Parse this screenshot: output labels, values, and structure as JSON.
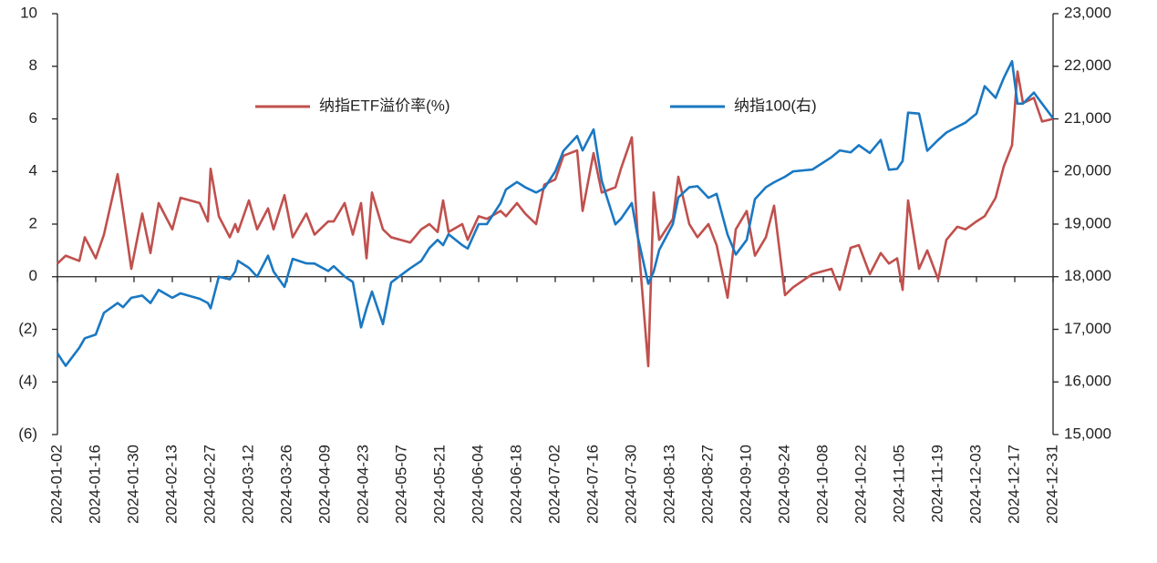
{
  "chart_data": {
    "type": "line",
    "x": [
      "2024-01-02",
      "2024-01-05",
      "2024-01-10",
      "2024-01-12",
      "2024-01-16",
      "2024-01-19",
      "2024-01-24",
      "2024-01-26",
      "2024-01-29",
      "2024-02-02",
      "2024-02-05",
      "2024-02-08",
      "2024-02-13",
      "2024-02-16",
      "2024-02-23",
      "2024-02-26",
      "2024-02-27",
      "2024-03-01",
      "2024-03-05",
      "2024-03-07",
      "2024-03-08",
      "2024-03-12",
      "2024-03-15",
      "2024-03-19",
      "2024-03-21",
      "2024-03-25",
      "2024-03-28",
      "2024-04-02",
      "2024-04-05",
      "2024-04-10",
      "2024-04-12",
      "2024-04-16",
      "2024-04-19",
      "2024-04-22",
      "2024-04-24",
      "2024-04-26",
      "2024-04-30",
      "2024-05-03",
      "2024-05-10",
      "2024-05-14",
      "2024-05-17",
      "2024-05-20",
      "2024-05-22",
      "2024-05-24",
      "2024-05-29",
      "2024-05-31",
      "2024-06-04",
      "2024-06-07",
      "2024-06-12",
      "2024-06-14",
      "2024-06-18",
      "2024-06-21",
      "2024-06-25",
      "2024-06-28",
      "2024-07-02",
      "2024-07-05",
      "2024-07-10",
      "2024-07-12",
      "2024-07-16",
      "2024-07-19",
      "2024-07-24",
      "2024-07-26",
      "2024-07-30",
      "2024-08-01",
      "2024-08-05",
      "2024-08-07",
      "2024-08-09",
      "2024-08-14",
      "2024-08-16",
      "2024-08-20",
      "2024-08-23",
      "2024-08-27",
      "2024-08-30",
      "2024-09-03",
      "2024-09-06",
      "2024-09-10",
      "2024-09-13",
      "2024-09-17",
      "2024-09-20",
      "2024-09-24",
      "2024-09-27",
      "2024-10-04",
      "2024-10-11",
      "2024-10-14",
      "2024-10-18",
      "2024-10-21",
      "2024-10-25",
      "2024-10-29",
      "2024-11-01",
      "2024-11-04",
      "2024-11-06",
      "2024-11-08",
      "2024-11-12",
      "2024-11-15",
      "2024-11-19",
      "2024-11-22",
      "2024-11-26",
      "2024-11-29",
      "2024-12-03",
      "2024-12-06",
      "2024-12-10",
      "2024-12-13",
      "2024-12-16",
      "2024-12-18",
      "2024-12-20",
      "2024-12-24",
      "2024-12-27",
      "2024-12-31"
    ],
    "series": [
      {
        "name": "纳指ETF溢价率(%)",
        "color": "#c0504d",
        "axis": "y",
        "values": [
          0.5,
          0.8,
          0.6,
          1.5,
          0.7,
          1.6,
          3.9,
          2.5,
          0.3,
          2.4,
          0.9,
          2.8,
          1.8,
          3.0,
          2.8,
          2.1,
          4.1,
          2.3,
          1.5,
          2.0,
          1.7,
          2.9,
          1.8,
          2.6,
          1.8,
          3.1,
          1.5,
          2.4,
          1.6,
          2.1,
          2.1,
          2.8,
          1.6,
          2.8,
          0.7,
          3.2,
          1.8,
          1.5,
          1.3,
          1.8,
          2.0,
          1.7,
          2.9,
          1.7,
          2.0,
          1.4,
          2.3,
          2.2,
          2.5,
          2.3,
          2.8,
          2.4,
          2.0,
          3.5,
          3.7,
          4.6,
          4.8,
          2.5,
          4.7,
          3.2,
          3.4,
          4.1,
          5.3,
          1.8,
          -3.4,
          3.2,
          1.4,
          2.2,
          3.8,
          2.0,
          1.5,
          2.0,
          1.2,
          -0.8,
          1.8,
          2.5,
          0.8,
          1.5,
          2.7,
          -0.7,
          -0.4,
          0.1,
          0.3,
          -0.5,
          1.1,
          1.2,
          0.1,
          0.9,
          0.5,
          0.7,
          -0.5,
          2.9,
          0.3,
          1.0,
          -0.1,
          1.4,
          1.9,
          1.8,
          2.1,
          2.3,
          3.0,
          4.2,
          5.0,
          7.8,
          6.6,
          6.8,
          5.9,
          6.0
        ]
      },
      {
        "name": "纳指100(右)",
        "color": "#1a78c2",
        "axis": "y2",
        "values": [
          16544,
          16306,
          16650,
          16830,
          16900,
          17314,
          17500,
          17421,
          17600,
          17642,
          17500,
          17750,
          17600,
          17685,
          17580,
          17500,
          17400,
          18000,
          17950,
          18100,
          18302,
          18169,
          18000,
          18400,
          18100,
          17808,
          18339,
          18254,
          18250,
          18108,
          18200,
          18003,
          17900,
          17037,
          17400,
          17718,
          17100,
          17890,
          18161,
          18300,
          18546,
          18700,
          18600,
          18808,
          18600,
          18536,
          19000,
          19000,
          19400,
          19659,
          19800,
          19701,
          19600,
          19683,
          20000,
          20392,
          20675,
          20400,
          20800,
          19822,
          18996,
          19100,
          19400,
          18800,
          17867,
          18100,
          18508,
          19000,
          19508,
          19700,
          19721,
          19500,
          19575,
          18800,
          18421,
          18700,
          19475,
          19700,
          19794,
          19900,
          20002,
          20037,
          20272,
          20400,
          20364,
          20500,
          20352,
          20600,
          20033,
          20050,
          20200,
          21118,
          21100,
          20394,
          20600,
          20740,
          20850,
          20930,
          21100,
          21622,
          21400,
          21780,
          22096,
          21290,
          21290,
          21500,
          21289,
          21012
        ]
      }
    ],
    "xlim": [
      "2024-01-02",
      "2024-12-31"
    ],
    "xticks": [
      "2024-01-02",
      "2024-01-16",
      "2024-01-30",
      "2024-02-13",
      "2024-02-27",
      "2024-03-12",
      "2024-03-26",
      "2024-04-09",
      "2024-04-23",
      "2024-05-07",
      "2024-05-21",
      "2024-06-04",
      "2024-06-18",
      "2024-07-02",
      "2024-07-16",
      "2024-07-30",
      "2024-08-13",
      "2024-08-27",
      "2024-09-10",
      "2024-09-24",
      "2024-10-08",
      "2024-10-22",
      "2024-11-05",
      "2024-11-19",
      "2024-12-03",
      "2024-12-17",
      "2024-12-31"
    ],
    "ylim": [
      -6,
      10
    ],
    "yticks": [
      10,
      8,
      6,
      4,
      2,
      0,
      {
        "value": -2,
        "label": "(2)"
      },
      {
        "value": -4,
        "label": "(4)"
      },
      {
        "value": -6,
        "label": "(6)"
      }
    ],
    "y2lim": [
      15000,
      23000
    ],
    "y2ticks": [
      {
        "value": 23000,
        "label": "23,000"
      },
      {
        "value": 22000,
        "label": "22,000"
      },
      {
        "value": 21000,
        "label": "21,000"
      },
      {
        "value": 20000,
        "label": "20,000"
      },
      {
        "value": 19000,
        "label": "19,000"
      },
      {
        "value": 18000,
        "label": "18,000"
      },
      {
        "value": 17000,
        "label": "17,000"
      },
      {
        "value": 16000,
        "label": "16,000"
      },
      {
        "value": 15000,
        "label": "15,000"
      }
    ],
    "legend": "top"
  }
}
